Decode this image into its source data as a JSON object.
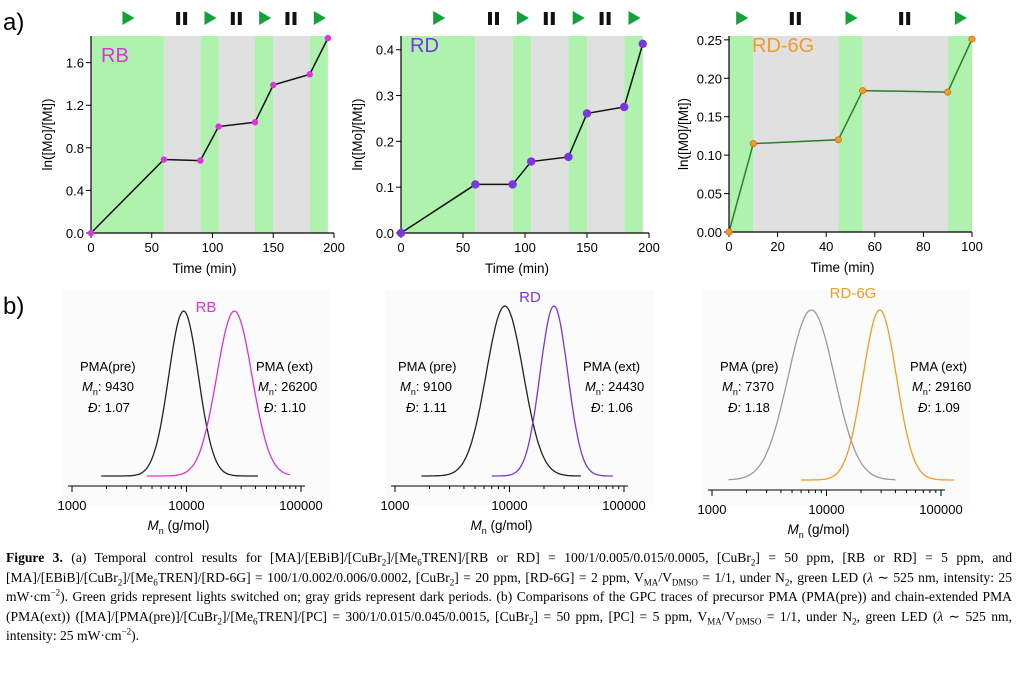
{
  "panel_labels": [
    "a)",
    "b)"
  ],
  "legend_icons": {
    "light_on": "play-triangle-icon",
    "dark": "pause-bars-icon"
  },
  "colors": {
    "light_region": "#aef2ae",
    "dark_region": "#e0e0e0",
    "RB": "#e030e0",
    "RD": "#7a35e0",
    "RD6G": "#f59a25",
    "pre_black": "#222222",
    "pre_gray": "#9a9a9a",
    "icon_green": "#13a13c"
  },
  "chart_data": [
    {
      "type": "line",
      "id": "a-RB",
      "title": "RB",
      "xlabel": "Time (min)",
      "ylabel": "ln([Mo]/[Mt])",
      "xlim": [
        0,
        200
      ],
      "ylim": [
        0,
        1.85
      ],
      "xticks": [
        0,
        50,
        100,
        150,
        200
      ],
      "xtick_labels": [
        "0",
        "50",
        "100",
        "150",
        "200"
      ],
      "yticks": [
        0,
        0.4,
        0.8,
        1.2,
        1.6
      ],
      "ytick_labels": [
        "0.0",
        "0.4",
        "0.8",
        "1.2",
        "1.6"
      ],
      "light_periods": [
        [
          0,
          60
        ],
        [
          90,
          105
        ],
        [
          135,
          150
        ],
        [
          180,
          195
        ]
      ],
      "dark_periods": [
        [
          60,
          90
        ],
        [
          105,
          135
        ],
        [
          150,
          180
        ]
      ],
      "x": [
        0,
        60,
        90,
        105,
        135,
        150,
        180,
        195
      ],
      "y": [
        0,
        0.69,
        0.68,
        1.0,
        1.04,
        1.39,
        1.49,
        1.83
      ]
    },
    {
      "type": "line",
      "id": "a-RD",
      "title": "RD",
      "xlabel": "Time (min)",
      "ylabel": "ln([Mo]/[Mt])",
      "xlim": [
        0,
        200
      ],
      "ylim": [
        0,
        0.43
      ],
      "xticks": [
        0,
        50,
        100,
        150,
        200
      ],
      "xtick_labels": [
        "0",
        "50",
        "100",
        "150",
        "200"
      ],
      "yticks": [
        0,
        0.1,
        0.2,
        0.3,
        0.4
      ],
      "ytick_labels": [
        "0.0",
        "0.1",
        "0.2",
        "0.3",
        "0.4"
      ],
      "light_periods": [
        [
          0,
          60
        ],
        [
          90,
          105
        ],
        [
          135,
          150
        ],
        [
          180,
          195
        ]
      ],
      "dark_periods": [
        [
          60,
          90
        ],
        [
          105,
          135
        ],
        [
          150,
          180
        ]
      ],
      "x": [
        0,
        60,
        90,
        105,
        135,
        150,
        180,
        195
      ],
      "y": [
        0,
        0.106,
        0.106,
        0.156,
        0.166,
        0.261,
        0.275,
        0.413
      ]
    },
    {
      "type": "line",
      "id": "a-RD6G",
      "title": "RD-6G",
      "xlabel": "Time (min)",
      "ylabel": "ln([M0]/[Mt])",
      "xlim": [
        0,
        100
      ],
      "ylim": [
        0,
        0.255
      ],
      "xticks": [
        0,
        20,
        40,
        60,
        80,
        100
      ],
      "xtick_labels": [
        "0",
        "20",
        "40",
        "60",
        "80",
        "100"
      ],
      "yticks": [
        0,
        0.05,
        0.1,
        0.15,
        0.2,
        0.25
      ],
      "ytick_labels": [
        "0.00",
        "0.05",
        "0.10",
        "0.15",
        "0.20",
        "0.25"
      ],
      "light_periods": [
        [
          0,
          10
        ],
        [
          45,
          55
        ],
        [
          90,
          100
        ]
      ],
      "dark_periods": [
        [
          10,
          45
        ],
        [
          55,
          90
        ]
      ],
      "x": [
        0,
        10,
        45,
        55,
        90,
        100
      ],
      "y": [
        0,
        0.115,
        0.12,
        0.184,
        0.182,
        0.251
      ]
    },
    {
      "type": "line",
      "id": "b-RB",
      "title": "RB",
      "xlabel": "Mn (g/mol)",
      "x_scale": "log",
      "xlim": [
        1000,
        100000
      ],
      "xtick_labels": [
        "1000",
        "10000",
        "100000"
      ],
      "series": [
        {
          "name": "PMA(pre)",
          "peak_mn": 9430,
          "dispersity": 1.07,
          "mn_label": "Mn:",
          "mn_value": "9430",
          "d_label": "Đ:",
          "d_value": "1.07",
          "range": [
            1800,
            42000
          ]
        },
        {
          "name": "PMA (ext)",
          "peak_mn": 26200,
          "dispersity": 1.1,
          "mn_label": "Mn:",
          "mn_value": "26200",
          "d_label": "Đ:",
          "d_value": "1.10",
          "range": [
            4500,
            80000
          ]
        }
      ]
    },
    {
      "type": "line",
      "id": "b-RD",
      "title": "RD",
      "xlabel": "Mn (g/mol)",
      "x_scale": "log",
      "xlim": [
        1000,
        100000
      ],
      "xtick_labels": [
        "1000",
        "10000",
        "100000"
      ],
      "series": [
        {
          "name": "PMA (pre)",
          "peak_mn": 9100,
          "dispersity": 1.11,
          "mn_label": "Mn:",
          "mn_value": "9100",
          "d_label": "Đ:",
          "d_value": "1.11",
          "range": [
            1700,
            42000
          ]
        },
        {
          "name": "PMA (ext)",
          "peak_mn": 24430,
          "dispersity": 1.06,
          "mn_label": "Mn:",
          "mn_value": "24430",
          "d_label": "Đ:",
          "d_value": "1.06",
          "range": [
            7000,
            80000
          ]
        }
      ]
    },
    {
      "type": "line",
      "id": "b-RD6G",
      "title": "RD-6G",
      "xlabel": "Mn (g/mol)",
      "x_scale": "log",
      "xlim": [
        1000,
        100000
      ],
      "xtick_labels": [
        "1000",
        "10000",
        "100000"
      ],
      "series": [
        {
          "name": "PMA (pre)",
          "peak_mn": 7370,
          "dispersity": 1.18,
          "mn_label": "Mn:",
          "mn_value": "7370",
          "d_label": "Đ:",
          "d_value": "1.18",
          "range": [
            1400,
            40000
          ]
        },
        {
          "name": "PMA (ext)",
          "peak_mn": 29160,
          "dispersity": 1.09,
          "mn_label": "Mn:",
          "mn_value": "29160",
          "d_label": "Đ:",
          "d_value": "1.09",
          "range": [
            6000,
            130000
          ]
        }
      ]
    }
  ],
  "caption": {
    "label": "Figure 3.",
    "text_a": "(a) Temporal control results for [MA]/[EBiB]/[CuBr2]/[Me6TREN]/[RB or RD] = 100/1/0.005/0.015/0.0005, [CuBr2] = 50 ppm, [RB or RD] = 5 ppm, and [MA]/[EBiB]/[CuBr2]/[Me6TREN]/[RD-6G] = 100/1/0.002/0.006/0.0002, [CuBr2] = 20 ppm, [RD-6G] = 2 ppm, VMA/VDMSO = 1/1, under N2, green LED (λ ∼ 525 nm, intensity: 25 mW·cm−2). Green grids represent lights switched on; gray grids represent dark periods.",
    "text_b": "(b) Comparisons of the GPC traces of precursor PMA (PMA(pre)) and chain-extended PMA (PMA(ext)) ([MA]/[PMA(pre)]/[CuBr2]/[Me6TREN]/[PC] = 300/1/0.015/0.045/0.0015, [CuBr2] = 50 ppm, [PC] = 5 ppm, VMA/VDMSO = 1/1, under N2, green LED (λ ∼ 525 nm, intensity: 25 mW·cm−2)."
  }
}
